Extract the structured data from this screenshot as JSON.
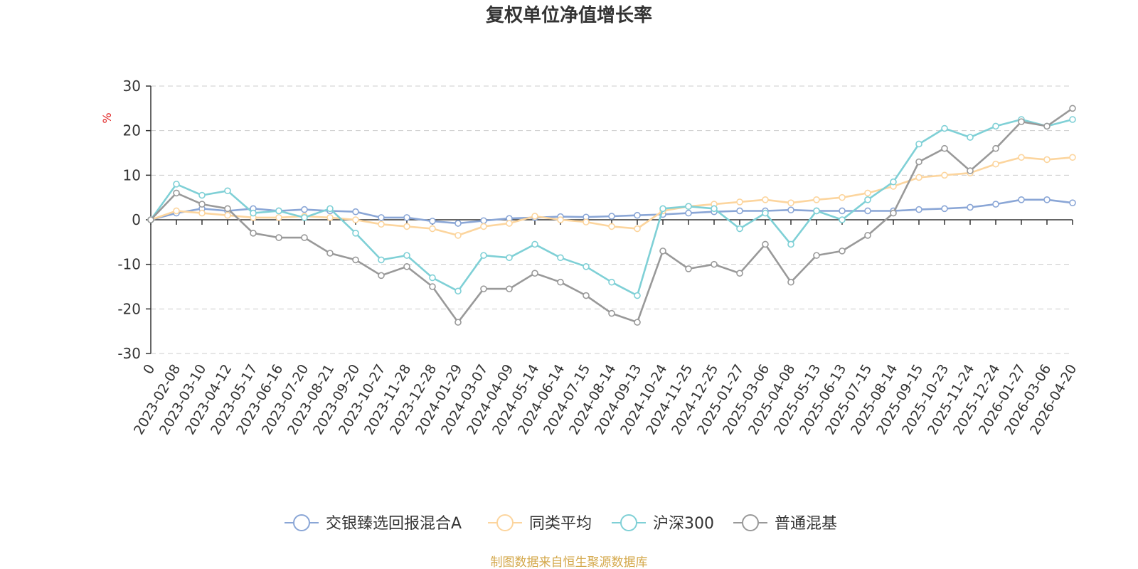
{
  "chart_data": {
    "type": "line",
    "title": "复权单位净值增长率",
    "ylabel": "%",
    "ylim": [
      -30,
      30
    ],
    "yticks": [
      30,
      20,
      10,
      0,
      -10,
      -20,
      -30
    ],
    "xticks": [
      "0",
      "2023-02-08",
      "2023-03-10",
      "2023-04-12",
      "2023-05-17",
      "2023-06-16",
      "2023-07-20",
      "2023-08-21",
      "2023-09-20",
      "2023-10-27",
      "2023-11-28",
      "2023-12-28",
      "2024-01-29",
      "2024-03-07",
      "2024-04-09",
      "2024-05-14",
      "2024-06-14",
      "2024-07-15",
      "2024-08-14",
      "2024-09-13",
      "2024-10-24",
      "2024-11-25",
      "2024-12-25",
      "2025-01-27",
      "2025-03-06",
      "2025-04-08",
      "2025-05-13",
      "2025-06-13",
      "2025-07-15",
      "2025-08-14",
      "2025-09-15",
      "2025-10-23",
      "2025-11-24",
      "2025-12-24",
      "2026-01-27",
      "2026-03-06",
      "2026-04-20"
    ],
    "grid": true,
    "legend_position": "bottom",
    "series": [
      {
        "name": "交银臻选回报混合A",
        "color": "#8aa6d6",
        "values": [
          0,
          1.5,
          2.5,
          2.0,
          2.5,
          2.0,
          2.3,
          2.0,
          1.8,
          0.5,
          0.5,
          -0.3,
          -0.8,
          -0.2,
          0.3,
          0.5,
          0.7,
          0.6,
          0.8,
          1.0,
          1.2,
          1.5,
          1.8,
          2.0,
          2.0,
          2.2,
          2.0,
          2.0,
          2.0,
          2.0,
          2.3,
          2.5,
          2.8,
          3.5,
          4.5,
          4.5,
          3.8
        ]
      },
      {
        "name": "同类平均",
        "color": "#fcd59e",
        "values": [
          0,
          2.0,
          1.5,
          1.0,
          0.5,
          0.5,
          0.8,
          0.5,
          0.0,
          -1.0,
          -1.5,
          -2.0,
          -3.5,
          -1.5,
          -0.8,
          0.8,
          0.0,
          -0.5,
          -1.5,
          -2.0,
          2.0,
          3.0,
          3.5,
          4.0,
          4.5,
          3.8,
          4.5,
          5.0,
          6.0,
          7.5,
          9.5,
          10.0,
          10.5,
          12.5,
          14.0,
          13.5,
          14.0
        ]
      },
      {
        "name": "沪深300",
        "color": "#7fd0d6",
        "values": [
          0,
          8.0,
          5.5,
          6.5,
          1.5,
          2.0,
          0.5,
          2.5,
          -3.0,
          -9.0,
          -8.0,
          -13.0,
          -16.0,
          -8.0,
          -8.5,
          -5.5,
          -8.5,
          -10.5,
          -14.0,
          -17.0,
          2.5,
          3.0,
          2.5,
          -2.0,
          1.5,
          -5.5,
          2.0,
          0.0,
          4.5,
          8.5,
          17.0,
          20.5,
          18.5,
          21.0,
          22.5,
          21.0,
          22.5
        ]
      },
      {
        "name": "普通混基",
        "color": "#999999",
        "values": [
          0,
          6.0,
          3.5,
          2.5,
          -3.0,
          -4.0,
          -4.0,
          -7.5,
          -9.0,
          -12.5,
          -10.5,
          -15.0,
          -23.0,
          -15.5,
          -15.5,
          -12.0,
          -14.0,
          -17.0,
          -21.0,
          -23.0,
          -7.0,
          -11.0,
          -10.0,
          -12.0,
          -5.5,
          -14.0,
          -8.0,
          -7.0,
          -3.5,
          1.5,
          13.0,
          16.0,
          11.0,
          16.0,
          22.0,
          21.0,
          25.0
        ]
      }
    ]
  },
  "source_text": "制图数据来自恒生聚源数据库",
  "colors": {
    "axis": "#333333",
    "grid": "#cccccc",
    "unit": "#e02020",
    "source": "#d4a84b"
  }
}
